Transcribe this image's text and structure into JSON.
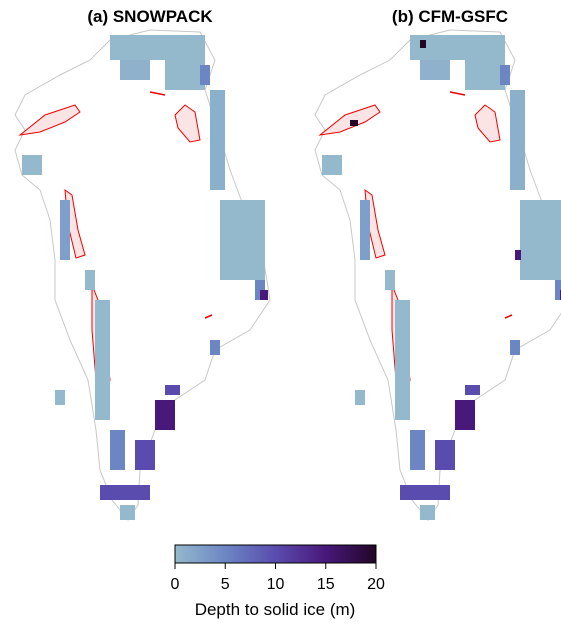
{
  "panels": [
    {
      "title": "(a) SNOWPACK"
    },
    {
      "title": "(b) CFM-GSFC"
    }
  ],
  "colorbar": {
    "label": "Depth to solid ice (m)",
    "lim": [
      0,
      20
    ],
    "ticks": [
      0,
      5,
      10,
      15,
      20
    ],
    "colors": [
      "#95b9cc",
      "#6c86c4",
      "#5a4cae",
      "#48187a",
      "#220626"
    ]
  }
}
